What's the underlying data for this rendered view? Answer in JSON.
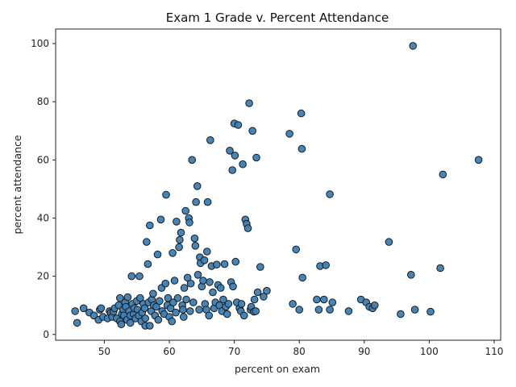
{
  "chart_data": {
    "type": "scatter",
    "title": "Exam 1 Grade v. Percent Attendance",
    "xlabel": "percent on exam",
    "ylabel": "percent attendance",
    "xlim": [
      42.5,
      111
    ],
    "ylim": [
      -2,
      105
    ],
    "xticks": [
      50,
      60,
      70,
      80,
      90,
      100,
      110
    ],
    "yticks": [
      0,
      20,
      40,
      60,
      80,
      100
    ],
    "grid": false,
    "series": [
      {
        "color": "#3b7fb6",
        "points": [
          [
            45.5,
            8
          ],
          [
            45.8,
            4
          ],
          [
            46.8,
            9
          ],
          [
            47.7,
            7.5
          ],
          [
            48.4,
            6.5
          ],
          [
            49.1,
            5
          ],
          [
            49.3,
            8.5
          ],
          [
            49.5,
            9
          ],
          [
            49.8,
            6
          ],
          [
            50.5,
            5.5
          ],
          [
            50.8,
            8
          ],
          [
            51.0,
            7.5
          ],
          [
            51.2,
            6
          ],
          [
            51.4,
            7.8
          ],
          [
            51.6,
            9
          ],
          [
            51.9,
            5.5
          ],
          [
            52.2,
            10
          ],
          [
            52.4,
            12.5
          ],
          [
            52.4,
            4.5
          ],
          [
            52.6,
            3.5
          ],
          [
            52.7,
            7
          ],
          [
            52.9,
            8.5
          ],
          [
            53.0,
            6.5
          ],
          [
            53.2,
            11
          ],
          [
            53.3,
            9.5
          ],
          [
            53.5,
            5
          ],
          [
            53.6,
            12.8
          ],
          [
            53.8,
            8
          ],
          [
            54.0,
            6.5
          ],
          [
            54.0,
            4
          ],
          [
            54.2,
            20
          ],
          [
            54.3,
            10.5
          ],
          [
            54.5,
            7
          ],
          [
            54.6,
            9
          ],
          [
            54.8,
            5.5
          ],
          [
            55.0,
            11.5
          ],
          [
            55.1,
            8.5
          ],
          [
            55.3,
            6.5
          ],
          [
            55.4,
            20
          ],
          [
            55.5,
            12.5
          ],
          [
            55.7,
            4.5
          ],
          [
            55.8,
            7.5
          ],
          [
            56.0,
            10.5
          ],
          [
            56.2,
            9
          ],
          [
            56.3,
            5.5
          ],
          [
            56.3,
            3
          ],
          [
            56.5,
            31.8
          ],
          [
            56.7,
            24.2
          ],
          [
            56.8,
            11
          ],
          [
            57.0,
            37.5
          ],
          [
            57.0,
            3
          ],
          [
            57.2,
            8
          ],
          [
            57.3,
            12
          ],
          [
            57.5,
            14
          ],
          [
            57.6,
            10
          ],
          [
            57.8,
            6.5
          ],
          [
            58.0,
            9.5
          ],
          [
            58.2,
            27.5
          ],
          [
            58.3,
            5
          ],
          [
            58.5,
            11.5
          ],
          [
            58.7,
            39.5
          ],
          [
            58.8,
            16
          ],
          [
            58.9,
            8
          ],
          [
            59.2,
            7
          ],
          [
            59.4,
            17.5
          ],
          [
            59.5,
            48
          ],
          [
            59.7,
            10
          ],
          [
            59.8,
            12.5
          ],
          [
            60.0,
            6
          ],
          [
            60.2,
            9
          ],
          [
            60.4,
            4.5
          ],
          [
            60.5,
            28
          ],
          [
            60.6,
            11
          ],
          [
            60.8,
            18.5
          ],
          [
            61.0,
            7.5
          ],
          [
            61.1,
            38.8
          ],
          [
            61.3,
            12.5
          ],
          [
            61.5,
            30
          ],
          [
            61.6,
            32.5
          ],
          [
            61.8,
            35
          ],
          [
            62.0,
            10
          ],
          [
            62.1,
            8.5
          ],
          [
            62.2,
            6
          ],
          [
            62.3,
            16
          ],
          [
            62.5,
            42.5
          ],
          [
            62.6,
            12
          ],
          [
            62.8,
            19.5
          ],
          [
            63.0,
            40
          ],
          [
            63.1,
            38.5
          ],
          [
            63.2,
            8
          ],
          [
            63.3,
            17.5
          ],
          [
            63.5,
            60
          ],
          [
            63.7,
            11
          ],
          [
            63.9,
            33
          ],
          [
            64.0,
            30.5
          ],
          [
            64.1,
            45.5
          ],
          [
            64.3,
            51
          ],
          [
            64.4,
            20.5
          ],
          [
            64.6,
            8.5
          ],
          [
            64.7,
            26.5
          ],
          [
            64.8,
            24.5
          ],
          [
            65.0,
            16.5
          ],
          [
            65.2,
            18.5
          ],
          [
            65.4,
            25.5
          ],
          [
            65.5,
            10.5
          ],
          [
            65.7,
            8.5
          ],
          [
            65.8,
            28.5
          ],
          [
            65.9,
            45.5
          ],
          [
            66.1,
            6.5
          ],
          [
            66.2,
            18
          ],
          [
            66.3,
            66.8
          ],
          [
            66.5,
            23.5
          ],
          [
            66.7,
            14.5
          ],
          [
            66.9,
            9
          ],
          [
            67.1,
            11
          ],
          [
            67.3,
            24
          ],
          [
            67.5,
            17
          ],
          [
            67.7,
            10
          ],
          [
            67.9,
            16
          ],
          [
            68.1,
            8
          ],
          [
            68.3,
            12
          ],
          [
            68.5,
            24.2
          ],
          [
            68.7,
            9.5
          ],
          [
            68.9,
            7
          ],
          [
            69.1,
            10.5
          ],
          [
            69.3,
            63.2
          ],
          [
            69.5,
            18
          ],
          [
            69.7,
            56.5
          ],
          [
            69.8,
            16.5
          ],
          [
            70.0,
            72.5
          ],
          [
            70.1,
            61.5
          ],
          [
            70.2,
            25
          ],
          [
            70.4,
            11
          ],
          [
            70.6,
            72
          ],
          [
            70.8,
            9
          ],
          [
            71.0,
            8
          ],
          [
            71.1,
            10.5
          ],
          [
            71.3,
            58.5
          ],
          [
            71.5,
            6.5
          ],
          [
            71.7,
            39.5
          ],
          [
            71.9,
            38
          ],
          [
            72.1,
            36.5
          ],
          [
            72.3,
            79.5
          ],
          [
            72.5,
            8.5
          ],
          [
            72.6,
            9.5
          ],
          [
            72.8,
            70
          ],
          [
            73.0,
            7.8
          ],
          [
            73.1,
            12
          ],
          [
            73.3,
            8
          ],
          [
            73.4,
            60.8
          ],
          [
            73.6,
            14.5
          ],
          [
            74.0,
            23.2
          ],
          [
            74.5,
            13
          ],
          [
            75.0,
            15
          ],
          [
            78.5,
            69
          ],
          [
            79.0,
            10.5
          ],
          [
            79.5,
            29.2
          ],
          [
            80.0,
            8.5
          ],
          [
            80.3,
            76
          ],
          [
            80.4,
            63.8
          ],
          [
            80.5,
            19.5
          ],
          [
            82.7,
            12
          ],
          [
            83.0,
            8.5
          ],
          [
            83.2,
            23.5
          ],
          [
            83.8,
            12
          ],
          [
            84.1,
            23.8
          ],
          [
            84.7,
            48.2
          ],
          [
            84.7,
            8.5
          ],
          [
            85.1,
            11
          ],
          [
            87.6,
            8
          ],
          [
            89.5,
            12
          ],
          [
            90.3,
            11
          ],
          [
            90.8,
            9.5
          ],
          [
            91.3,
            9
          ],
          [
            91.6,
            10
          ],
          [
            93.8,
            31.8
          ],
          [
            95.6,
            7
          ],
          [
            97.2,
            20.5
          ],
          [
            97.5,
            99.2
          ],
          [
            97.8,
            8.5
          ],
          [
            100.2,
            7.8
          ],
          [
            101.7,
            22.8
          ],
          [
            102.1,
            55
          ],
          [
            107.6,
            60
          ]
        ]
      }
    ]
  }
}
